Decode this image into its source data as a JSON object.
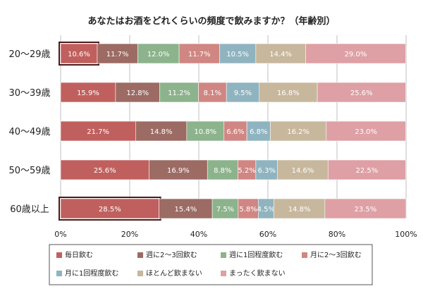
{
  "chart_data": {
    "type": "bar",
    "orientation": "horizontal",
    "stacked": "percent",
    "title": "あなたはお酒をどれくらいの頻度で飲みますか？（年齢別）",
    "categories": [
      "20～29歳",
      "30～39歳",
      "40～49歳",
      "50～59歳",
      "60歳以上"
    ],
    "series": [
      {
        "name": "毎日飲む",
        "color": "#c0605e",
        "values": [
          10.6,
          15.9,
          21.7,
          25.6,
          28.5
        ]
      },
      {
        "name": "週に2～3回飲む",
        "color": "#9c6b63",
        "values": [
          11.7,
          12.8,
          14.8,
          16.9,
          15.4
        ]
      },
      {
        "name": "週に1回程度飲む",
        "color": "#8cb38c",
        "values": [
          12.0,
          11.2,
          10.8,
          8.8,
          7.5
        ]
      },
      {
        "name": "月に2～3回飲む",
        "color": "#d08682",
        "values": [
          11.7,
          8.1,
          6.6,
          5.2,
          5.8
        ]
      },
      {
        "name": "月に1回程度飲む",
        "color": "#8fb4c0",
        "values": [
          10.5,
          9.5,
          6.8,
          6.3,
          4.5
        ]
      },
      {
        "name": "ほとんど飲まない",
        "color": "#c7b79c",
        "values": [
          14.4,
          16.8,
          16.2,
          14.6,
          14.8
        ]
      },
      {
        "name": "まったく飲まない",
        "color": "#dea0a4",
        "values": [
          29.0,
          25.6,
          23.0,
          22.5,
          23.5
        ]
      }
    ],
    "xlim": [
      0,
      100
    ],
    "xticks": [
      "0%",
      "20%",
      "40%",
      "60%",
      "80%",
      "100%"
    ],
    "grid": "vertical",
    "legend_position": "bottom",
    "highlighted": [
      {
        "category": "20～29歳",
        "series": "毎日飲む"
      },
      {
        "category": "60歳以上",
        "series": "毎日飲む"
      }
    ],
    "label_color": "#ffffff",
    "highlight_color": "#4a1a1a"
  }
}
